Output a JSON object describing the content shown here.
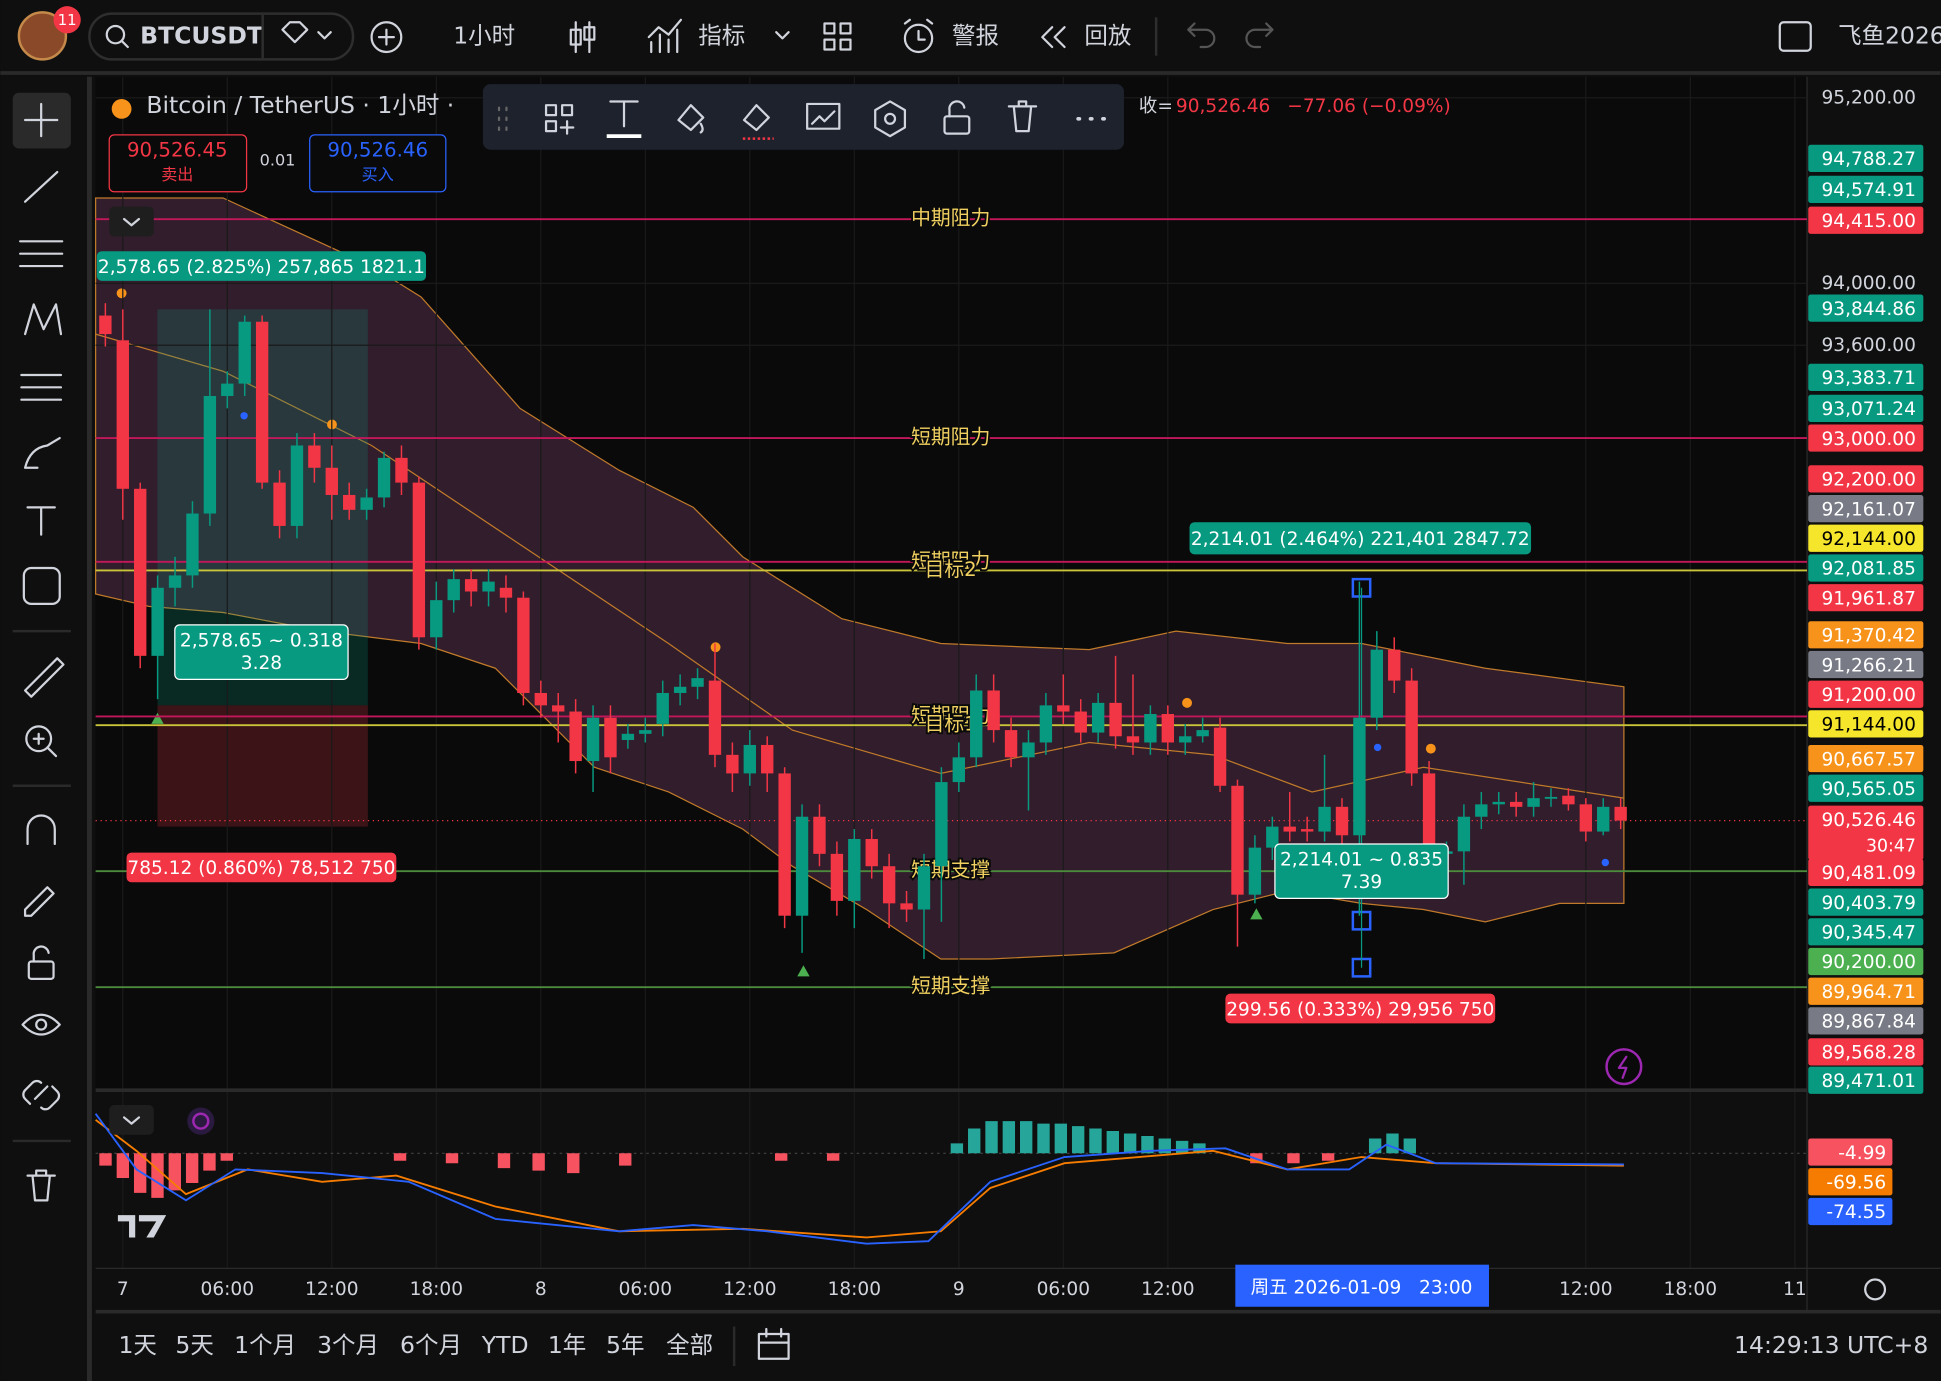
{
  "toolbar": {
    "symbol": "BTCUSDT",
    "notifications": "11",
    "interval": "1小时",
    "indicators": "指标",
    "alerts": "警报",
    "replay": "回放",
    "user": "飞鱼2026"
  },
  "legend": {
    "title": "Bitcoin / TetherUS · 1小时 ·",
    "close_label": "收=",
    "close": "90,526.46",
    "change": "−77.06 (−0.09%)",
    "sell_price": "90,526.45",
    "sell": "卖出",
    "spread": "0.01",
    "buy_price": "90,526.46",
    "buy": "买入"
  },
  "chart_data": {
    "type": "candlestick",
    "up_color": "#089981",
    "down_color": "#f23645",
    "xlim": [
      -1.56,
      96.7
    ],
    "ylim": [
      88792,
      95336
    ],
    "xticks": [
      {
        "value": 0,
        "label": "7"
      },
      {
        "value": 6,
        "label": "06:00"
      },
      {
        "value": 12,
        "label": "12:00"
      },
      {
        "value": 18,
        "label": "18:00"
      },
      {
        "value": 24,
        "label": "8"
      },
      {
        "value": 30,
        "label": "06:00"
      },
      {
        "value": 36,
        "label": "12:00"
      },
      {
        "value": 42,
        "label": "18:00"
      },
      {
        "value": 48,
        "label": "9"
      },
      {
        "value": 54,
        "label": "06:00"
      },
      {
        "value": 60,
        "label": "12:00"
      },
      {
        "value": 84,
        "label": "12:00"
      },
      {
        "value": 90,
        "label": "18:00"
      },
      {
        "value": 96,
        "label": "11"
      }
    ],
    "yticks": [
      {
        "value": 95200,
        "label": "95,200.00"
      },
      {
        "value": 94000,
        "label": "94,000.00"
      },
      {
        "value": 93600,
        "label": "93,600.00"
      }
    ],
    "last_price": 90526.46,
    "levels": [
      {
        "label": "中期阻力",
        "price": 94415,
        "color": "#c2185b"
      },
      {
        "label": "短期阻力",
        "price": 93000,
        "color": "#c2185b"
      },
      {
        "label": "短期阻力",
        "price": 92200,
        "color": "#c2185b"
      },
      {
        "label": "目标2",
        "price": 92144,
        "color": "#c9c43a"
      },
      {
        "label": "短期阻力",
        "price": 91200,
        "color": "#c2185b"
      },
      {
        "label": "目标1",
        "price": 91144,
        "color": "#c9c43a"
      },
      {
        "label": "短期支撑",
        "price": 90200,
        "color": "#4c8a3c"
      },
      {
        "label": "短期支撑",
        "price": 89450,
        "color": "#4c8a3c"
      }
    ],
    "x": [
      -1,
      0,
      1,
      2,
      3,
      4,
      5,
      6,
      7,
      8,
      9,
      10,
      11,
      12,
      13,
      14,
      15,
      16,
      17,
      18,
      19,
      20,
      21,
      22,
      23,
      24,
      25,
      26,
      27,
      28,
      29,
      30,
      31,
      32,
      33,
      34,
      35,
      36,
      37,
      38,
      39,
      40,
      41,
      42,
      43,
      44,
      45,
      46,
      47,
      48,
      49,
      50,
      51,
      52,
      53,
      54,
      55,
      56,
      57,
      58,
      59,
      60,
      61,
      62,
      63,
      64,
      65,
      66,
      67,
      68,
      69,
      70,
      71,
      72,
      73,
      74,
      75,
      76,
      77,
      78,
      79,
      80,
      81,
      82,
      83,
      84,
      85,
      86
    ],
    "candles": [
      [
        93792,
        93872,
        93592,
        93672
      ],
      [
        93632,
        93832,
        92472,
        92672
      ],
      [
        92672,
        92712,
        91512,
        91592
      ],
      [
        91592,
        92112,
        91312,
        92032
      ],
      [
        92032,
        92232,
        91912,
        92112
      ],
      [
        92112,
        92592,
        92032,
        92512
      ],
      [
        92512,
        93832,
        92432,
        93272
      ],
      [
        93272,
        93432,
        93192,
        93352
      ],
      [
        93352,
        93792,
        93272,
        93752
      ],
      [
        93752,
        93792,
        92672,
        92712
      ],
      [
        92712,
        92792,
        92352,
        92432
      ],
      [
        92432,
        93032,
        92352,
        92952
      ],
      [
        92952,
        93032,
        92712,
        92808
      ],
      [
        92808,
        92952,
        92472,
        92632
      ],
      [
        92632,
        92712,
        92472,
        92536
      ],
      [
        92536,
        92672,
        92472,
        92616
      ],
      [
        92616,
        92912,
        92552,
        92872
      ],
      [
        92872,
        92952,
        92632,
        92712
      ],
      [
        92712,
        92752,
        91632,
        91712
      ],
      [
        91712,
        92072,
        91632,
        91952
      ],
      [
        91952,
        92152,
        91872,
        92088
      ],
      [
        92088,
        92152,
        91912,
        92008
      ],
      [
        92008,
        92152,
        91912,
        92072
      ],
      [
        92032,
        92112,
        91872,
        91968
      ],
      [
        91968,
        92008,
        91272,
        91352
      ],
      [
        91352,
        91432,
        91192,
        91272
      ],
      [
        91272,
        91352,
        91032,
        91232
      ],
      [
        91232,
        91312,
        90832,
        90912
      ],
      [
        90912,
        91272,
        90712,
        91192
      ],
      [
        91192,
        91272,
        90832,
        90936
      ],
      [
        91048,
        91152,
        90992,
        91088
      ],
      [
        91088,
        91192,
        91032,
        91112
      ],
      [
        91152,
        91432,
        91072,
        91352
      ],
      [
        91352,
        91472,
        91272,
        91392
      ],
      [
        91392,
        91512,
        91312,
        91448
      ],
      [
        91432,
        91672,
        90872,
        90952
      ],
      [
        90952,
        91032,
        90712,
        90832
      ],
      [
        90832,
        91112,
        90752,
        91016
      ],
      [
        91016,
        91072,
        90712,
        90832
      ],
      [
        90832,
        90872,
        89832,
        89912
      ],
      [
        89912,
        90632,
        89672,
        90552
      ],
      [
        90552,
        90632,
        90232,
        90312
      ],
      [
        90312,
        90392,
        89912,
        90008
      ],
      [
        90008,
        90472,
        89832,
        90408
      ],
      [
        90408,
        90472,
        90152,
        90232
      ],
      [
        90232,
        90312,
        89832,
        89992
      ],
      [
        89992,
        90072,
        89872,
        89952
      ],
      [
        89952,
        90312,
        89632,
        90232
      ],
      [
        90232,
        90872,
        89872,
        90776
      ],
      [
        90776,
        91032,
        90712,
        90936
      ],
      [
        90936,
        91472,
        90872,
        91368
      ],
      [
        91368,
        91472,
        91032,
        91112
      ],
      [
        91112,
        91192,
        90872,
        90936
      ],
      [
        90936,
        91112,
        90592,
        91032
      ],
      [
        91032,
        91352,
        90952,
        91272
      ],
      [
        91272,
        91472,
        91152,
        91232
      ],
      [
        91232,
        91312,
        91032,
        91096
      ],
      [
        91096,
        91352,
        91032,
        91288
      ],
      [
        91288,
        91592,
        90992,
        91072
      ],
      [
        91072,
        91472,
        90952,
        91032
      ],
      [
        91032,
        91272,
        90952,
        91216
      ],
      [
        91216,
        91272,
        90952,
        91032
      ],
      [
        91032,
        91152,
        90952,
        91072
      ],
      [
        91072,
        91192,
        91032,
        91112
      ],
      [
        91128,
        91192,
        90712,
        90752
      ],
      [
        90752,
        90792,
        89712,
        90048
      ],
      [
        90048,
        90432,
        89992,
        90352
      ],
      [
        90352,
        90552,
        90272,
        90488
      ],
      [
        90488,
        90712,
        90392,
        90456
      ],
      [
        90472,
        90552,
        90392,
        90456
      ],
      [
        90456,
        90952,
        90392,
        90616
      ],
      [
        90616,
        90672,
        90352,
        90432
      ],
      [
        90432,
        92072,
        89912,
        91192
      ],
      [
        91192,
        91752,
        91112,
        91632
      ],
      [
        91632,
        91712,
        91352,
        91432
      ],
      [
        91432,
        91512,
        90752,
        90832
      ],
      [
        90832,
        90912,
        90232,
        90312
      ],
      [
        90312,
        90392,
        90232,
        90328
      ],
      [
        90328,
        90632,
        90112,
        90552
      ],
      [
        90552,
        90712,
        90472,
        90632
      ],
      [
        90632,
        90712,
        90568,
        90648
      ],
      [
        90648,
        90712,
        90552,
        90616
      ],
      [
        90616,
        90776,
        90552,
        90672
      ],
      [
        90672,
        90736,
        90616,
        90680
      ],
      [
        90688,
        90736,
        90592,
        90632
      ],
      [
        90632,
        90672,
        90392,
        90456
      ],
      [
        90456,
        90672,
        90432,
        90616
      ],
      [
        90616,
        90672,
        90472,
        90527
      ]
    ]
  },
  "measurements": [
    {
      "lines": [
        "2,578.65 (2.825%) 257,865 1821.1"
      ],
      "color": "#089981"
    },
    {
      "lines": [
        "2,578.65 ~ 0.318",
        "3.28"
      ],
      "color": "#089981"
    },
    {
      "lines": [
        "785.12 (0.860%) 78,512 750"
      ],
      "color": "#f23645"
    },
    {
      "lines": [
        "2,214.01 (2.464%) 221,401 2847.72"
      ],
      "color": "#089981"
    },
    {
      "lines": [
        "2,214.01 ~ 0.835",
        "7.39"
      ],
      "color": "#089981"
    },
    {
      "lines": [
        "299.56 (0.333%) 29,956 750"
      ],
      "color": "#f23645"
    }
  ],
  "price_badges": [
    {
      "text": "94,788.27",
      "color": "#089981"
    },
    {
      "text": "94,574.91",
      "color": "#089981"
    },
    {
      "text": "94,415.00",
      "color": "#f23645"
    },
    {
      "text": "93,844.86",
      "color": "#089981"
    },
    {
      "text": "93,383.71",
      "color": "#089981"
    },
    {
      "text": "93,071.24",
      "color": "#089981"
    },
    {
      "text": "93,000.00",
      "color": "#f23645"
    },
    {
      "text": "92,200.00",
      "color": "#f23645"
    },
    {
      "text": "92,161.07",
      "color": "#787b86"
    },
    {
      "text": "92,144.00",
      "color": "#f5e52b"
    },
    {
      "text": "92,081.85",
      "color": "#089981"
    },
    {
      "text": "91,961.87",
      "color": "#f23645"
    },
    {
      "text": "91,370.42",
      "color": "#f7931a"
    },
    {
      "text": "91,266.21",
      "color": "#787b86"
    },
    {
      "text": "91,200.00",
      "color": "#f23645"
    },
    {
      "text": "91,144.00",
      "color": "#f5e52b"
    },
    {
      "text": "90,667.57",
      "color": "#f7931a"
    },
    {
      "text": "90,565.05",
      "color": "#089981"
    },
    {
      "text": "90,526.46",
      "color": "#f23645"
    },
    {
      "text": "90,481.09",
      "color": "#f23645"
    },
    {
      "text": "90,403.79",
      "color": "#089981"
    },
    {
      "text": "90,345.47",
      "color": "#089981"
    },
    {
      "text": "90,200.00",
      "color": "#4caf50"
    },
    {
      "text": "89,964.71",
      "color": "#f7931a"
    },
    {
      "text": "89,867.84",
      "color": "#787b86"
    },
    {
      "text": "89,568.28",
      "color": "#f23645"
    },
    {
      "text": "89,471.01",
      "color": "#089981"
    }
  ],
  "countdown": "30:47",
  "indicator_badges": [
    {
      "text": "-4.99",
      "color": "#f7525f"
    },
    {
      "text": "-69.56",
      "color": "#f57c00"
    },
    {
      "text": "-74.55",
      "color": "#2962ff"
    }
  ],
  "crosshair_time": "周五 2026-01-09   23:00",
  "ranges": [
    "1天",
    "5天",
    "1个月",
    "3个月",
    "6个月",
    "YTD",
    "1年",
    "5年",
    "全部"
  ],
  "clock": "14:29:13 UTC+8"
}
